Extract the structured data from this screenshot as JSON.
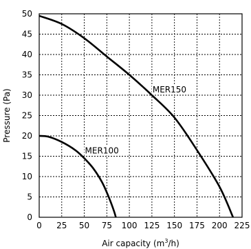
{
  "chart_data": {
    "type": "line",
    "xlabel": "Air capacity (m³/h)",
    "xlabel_parts": {
      "before": "Air capacity (m",
      "sup": "3",
      "after": "/h)"
    },
    "ylabel": "Pressure (Pa)",
    "xlim": [
      0,
      225
    ],
    "ylim": [
      0,
      50
    ],
    "x_ticks": [
      0,
      25,
      50,
      75,
      100,
      125,
      150,
      175,
      200,
      225
    ],
    "y_ticks": [
      0,
      5,
      10,
      15,
      20,
      25,
      30,
      35,
      40,
      45,
      50
    ],
    "grid": true,
    "legend": "none",
    "series": [
      {
        "name": "MER150",
        "x": [
          0,
          25,
          50,
          75,
          100,
          125,
          150,
          175,
          200,
          215
        ],
        "y": [
          49.5,
          47.5,
          44,
          39.5,
          35,
          30,
          24.5,
          16.5,
          7.5,
          0
        ],
        "label": {
          "text": "MER150",
          "x": 125,
          "y": 30
        }
      },
      {
        "name": "MER100",
        "x": [
          0,
          10,
          25,
          40,
          50,
          60,
          70,
          78,
          83,
          85
        ],
        "y": [
          20,
          19.8,
          18.5,
          16.5,
          14.5,
          12,
          8.5,
          4.5,
          1.5,
          0
        ],
        "label": {
          "text": "MER100",
          "x": 50,
          "y": 15
        }
      }
    ]
  }
}
